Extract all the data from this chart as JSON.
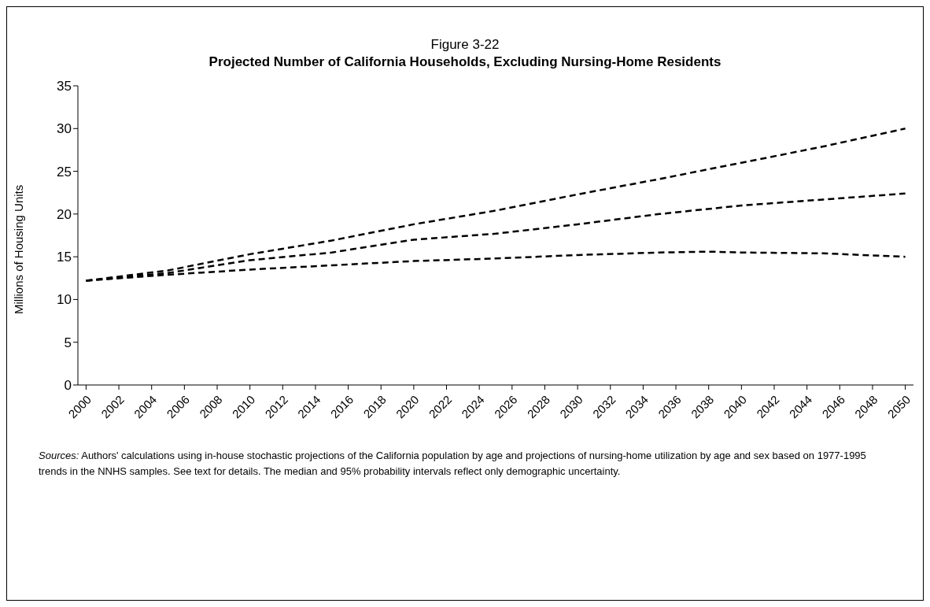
{
  "chart_data": {
    "type": "line",
    "title": "Figure 3-22",
    "subtitle": "Projected Number of California Households, Excluding Nursing-Home Residents",
    "ylabel": "Millions of Housing Units",
    "xlim": [
      1999.5,
      2050.5
    ],
    "xticks": [
      2000,
      2002,
      2004,
      2006,
      2008,
      2010,
      2012,
      2014,
      2016,
      2018,
      2020,
      2022,
      2024,
      2026,
      2028,
      2030,
      2032,
      2034,
      2036,
      2038,
      2040,
      2042,
      2044,
      2046,
      2048,
      2050
    ],
    "ylim": [
      0,
      35
    ],
    "yticks": [
      0,
      5,
      10,
      15,
      20,
      25,
      30,
      35
    ],
    "grid": false,
    "legend": false,
    "marker": "none",
    "line_style": "dashed",
    "series": [
      {
        "color": "#000000",
        "x": [
          2000,
          2005,
          2010,
          2015,
          2020,
          2025,
          2030,
          2035,
          2040,
          2045,
          2050
        ],
        "values": [
          12.2,
          13.4,
          15.3,
          16.9,
          18.8,
          20.4,
          22.3,
          24.1,
          26.0,
          27.9,
          30.0
        ]
      },
      {
        "color": "#000000",
        "x": [
          2000,
          2005,
          2010,
          2015,
          2020,
          2025,
          2030,
          2035,
          2040,
          2045,
          2050
        ],
        "values": [
          12.2,
          13.1,
          14.6,
          15.5,
          17.0,
          17.7,
          18.8,
          20.0,
          21.0,
          21.7,
          22.4
        ]
      },
      {
        "color": "#000000",
        "x": [
          2000,
          2005,
          2010,
          2015,
          2020,
          2025,
          2030,
          2035,
          2038,
          2040,
          2045,
          2050
        ],
        "values": [
          12.2,
          12.9,
          13.5,
          14.0,
          14.5,
          14.8,
          15.2,
          15.5,
          15.6,
          15.5,
          15.4,
          15.0
        ]
      }
    ],
    "annotations": [
      "Sources: Authors' calculations using in-house stochastic projections of the California population by age and projections of nursing-home utilization by age and sex based on 1977-1995 trends in the NNHS samples. See text for details. The median and 95% probability intervals reflect only demographic uncertainty."
    ]
  }
}
